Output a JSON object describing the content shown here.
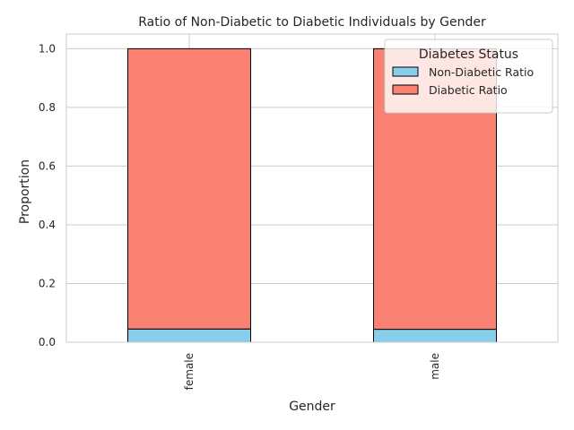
{
  "chart_data": {
    "type": "bar",
    "stacked": true,
    "title": "Ratio of Non-Diabetic to Diabetic Individuals by Gender",
    "xlabel": "Gender",
    "ylabel": "Proportion",
    "categories": [
      "female",
      "male"
    ],
    "series": [
      {
        "name": "Non-Diabetic Ratio",
        "values": [
          0.045,
          0.044
        ],
        "color": "#87ceeb"
      },
      {
        "name": "Diabetic Ratio",
        "values": [
          0.955,
          0.956
        ],
        "color": "#fa8072"
      }
    ],
    "ylim": [
      0,
      1.05
    ],
    "yticks": [
      0.0,
      0.2,
      0.4,
      0.6,
      0.8,
      1.0
    ],
    "ytick_labels": [
      "0.0",
      "0.2",
      "0.4",
      "0.6",
      "0.8",
      "1.0"
    ],
    "grid": true,
    "legend": {
      "title": "Diabetes Status",
      "position": "top-right"
    }
  }
}
